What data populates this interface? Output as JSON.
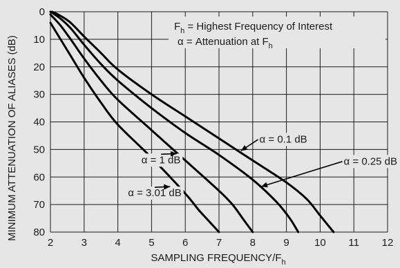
{
  "chart_data": {
    "type": "line",
    "xlabel": "SAMPLING FREQUENCY/F",
    "xlabel_sub": "h",
    "ylabel": "MINIMUM ATTENUATION OF ALIASES (dB)",
    "xlim": [
      2,
      12
    ],
    "ylim": [
      0,
      80
    ],
    "y_inverted": true,
    "grid": true,
    "x_ticks": [
      "2",
      "3",
      "4",
      "5",
      "6",
      "7",
      "8",
      "9",
      "10",
      "11",
      "12"
    ],
    "y_ticks": [
      "0",
      "10",
      "20",
      "30",
      "40",
      "50",
      "60",
      "70",
      "80"
    ],
    "annotations": {
      "line1": {
        "main": "F",
        "sub": "h",
        "rest": " = Highest Frequency of Interest"
      },
      "line2": {
        "main": "α = Attenuation at F",
        "sub": "h"
      }
    },
    "series": [
      {
        "name": "α = 0.1 dB",
        "x": [
          2.05,
          2.3,
          2.6,
          3.0,
          3.5,
          4.0,
          5.0,
          6.0,
          7.0,
          8.0,
          9.0,
          9.6,
          10.0,
          10.4
        ],
        "y": [
          0,
          1.5,
          4,
          9,
          15,
          21,
          30,
          38,
          46,
          54,
          62,
          68,
          74,
          80
        ]
      },
      {
        "name": "α = 0.25 dB",
        "x": [
          2.0,
          2.3,
          2.6,
          3.0,
          3.5,
          4.0,
          5.0,
          6.0,
          7.0,
          8.0,
          8.7,
          9.1,
          9.35
        ],
        "y": [
          0,
          2.5,
          6,
          12,
          19,
          25,
          35,
          44,
          52,
          61,
          69,
          75,
          80
        ]
      },
      {
        "name": "α = 1 dB",
        "x": [
          2.0,
          2.3,
          2.6,
          3.0,
          3.5,
          4.0,
          5.0,
          6.0,
          7.0,
          7.4,
          7.7,
          8.0
        ],
        "y": [
          1,
          5,
          10,
          17,
          25,
          32,
          43,
          54,
          65,
          70,
          75,
          80
        ]
      },
      {
        "name": "α = 3.01 dB",
        "x": [
          2.0,
          2.3,
          2.6,
          3.0,
          3.5,
          4.0,
          5.0,
          6.0,
          6.4,
          6.7,
          7.0
        ],
        "y": [
          4,
          10,
          16,
          24,
          33,
          41,
          53,
          66,
          72,
          76,
          80
        ]
      }
    ],
    "labels": [
      {
        "text": "α = 0.1 dB",
        "x": 8.2,
        "y": 47.5,
        "arrow_to": [
          7.65,
          50.5
        ]
      },
      {
        "text": "α = 0.25 dB",
        "x": 10.7,
        "y": 55.5,
        "arrow_to": [
          8.25,
          63.5
        ]
      },
      {
        "text": "α = 1 dB",
        "x": 4.7,
        "y": 55,
        "arrow_to": [
          5.75,
          51.5
        ]
      },
      {
        "text": "α = 3.01 dB",
        "x": 4.3,
        "y": 67,
        "arrow_to": [
          5.55,
          63.5
        ]
      }
    ]
  }
}
